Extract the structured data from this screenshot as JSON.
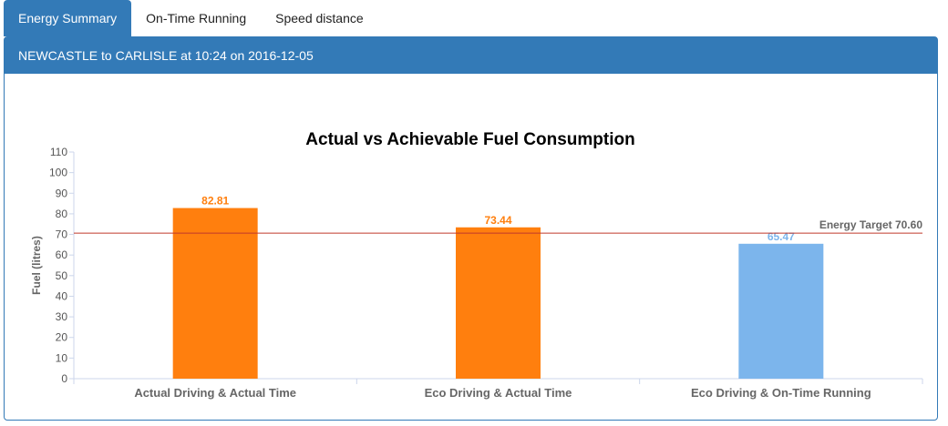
{
  "tabs": [
    {
      "label": "Energy Summary",
      "active": true
    },
    {
      "label": "On-Time Running",
      "active": false
    },
    {
      "label": "Speed distance",
      "active": false
    }
  ],
  "panel": {
    "heading": "NEWCASTLE to CARLISLE at 10:24 on 2016-12-05"
  },
  "colors": {
    "accent": "#337ab7",
    "orange": "#ff7f0e",
    "blue": "#7cb5ec",
    "target_line": "#c0392b"
  },
  "chart_data": {
    "type": "bar",
    "title": "Actual vs Achievable Fuel Consumption",
    "ylabel": "Fuel (litres)",
    "xlabel": "",
    "ylim": [
      0,
      110
    ],
    "yticks": [
      0,
      10,
      20,
      30,
      40,
      50,
      60,
      70,
      80,
      90,
      100,
      110
    ],
    "categories": [
      "Actual Driving & Actual Time",
      "Eco Driving & Actual Time",
      "Eco Driving & On-Time Running"
    ],
    "values": [
      82.81,
      73.44,
      65.47
    ],
    "value_labels": [
      "82.81",
      "73.44",
      "65.47"
    ],
    "bar_colors": [
      "#ff7f0e",
      "#ff7f0e",
      "#7cb5ec"
    ],
    "target": {
      "label": "Energy Target 70.60",
      "value": 70.6
    },
    "grid": false,
    "legend": "none"
  }
}
